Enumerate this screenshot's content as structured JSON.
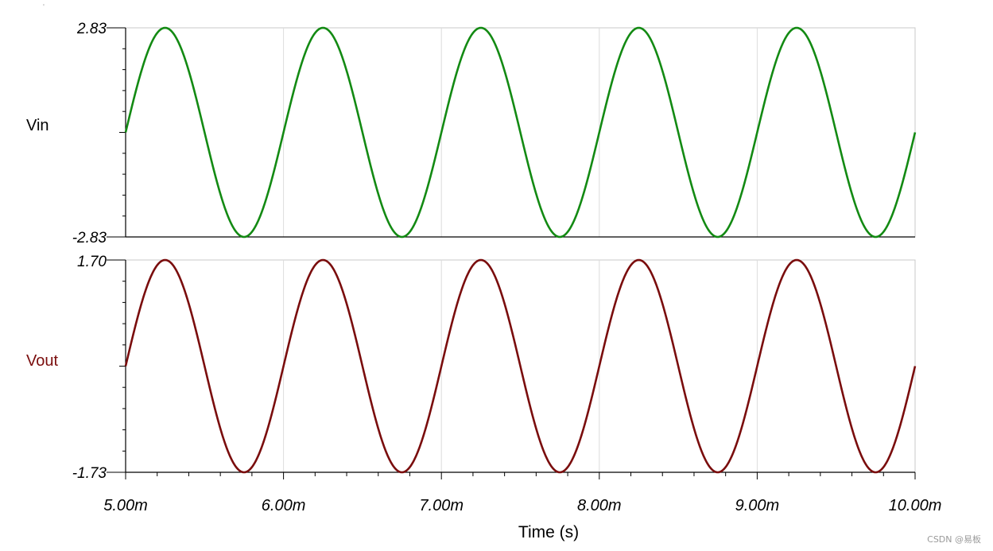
{
  "chart_data": [
    {
      "type": "line",
      "series": [
        {
          "name": "Vin",
          "color": "#138a13",
          "amplitude": 2.83,
          "frequency_hz": 1000,
          "phase_deg": 0,
          "x_range": [
            0.005,
            0.01
          ]
        }
      ],
      "ylabel": "Vin",
      "ylim": [
        -2.83,
        2.83
      ],
      "ytick_labels": [
        "2.83",
        "-2.83"
      ],
      "xlim": [
        0.005,
        0.01
      ],
      "grid": "vertical"
    },
    {
      "type": "line",
      "series": [
        {
          "name": "Vout",
          "color": "#7a0d0d",
          "amplitude": 1.715,
          "offset": -0.015,
          "frequency_hz": 1000,
          "phase_deg": 0,
          "x_range": [
            0.005,
            0.01
          ]
        }
      ],
      "ylabel": "Vout",
      "ylim": [
        -1.73,
        1.7
      ],
      "ytick_labels": [
        "1.70",
        "-1.73"
      ],
      "xlim": [
        0.005,
        0.01
      ],
      "xtick_labels": [
        "5.00m",
        "6.00m",
        "7.00m",
        "8.00m",
        "9.00m",
        "10.00m"
      ],
      "xlabel": "Time (s)",
      "grid": "vertical"
    }
  ],
  "watermark": "CSDN @易板",
  "corner_mark": "'"
}
